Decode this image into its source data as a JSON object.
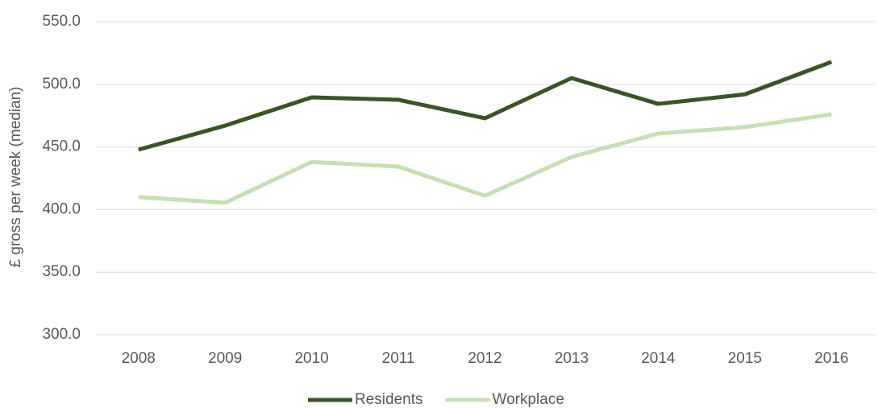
{
  "chart_data": {
    "type": "line",
    "y_label": "£ gross per week (median)",
    "categories": [
      "2008",
      "2009",
      "2010",
      "2011",
      "2012",
      "2013",
      "2014",
      "2015",
      "2016"
    ],
    "series": [
      {
        "name": "Residents",
        "color": "#375623",
        "values": [
          447.8,
          467.0,
          489.6,
          487.7,
          472.9,
          505.0,
          484.4,
          492.0,
          517.9
        ]
      },
      {
        "name": "Workplace",
        "color": "#c5e0b4",
        "values": [
          410.0,
          405.4,
          438.0,
          434.3,
          411.0,
          442.0,
          460.7,
          465.8,
          476.0
        ]
      }
    ],
    "ylim": [
      300,
      550
    ],
    "yticks": [
      {
        "value": 300,
        "label": "300.0"
      },
      {
        "value": 350,
        "label": "350.0"
      },
      {
        "value": 400,
        "label": "400.0"
      },
      {
        "value": 450,
        "label": "450.0"
      },
      {
        "value": 500,
        "label": "500.0"
      },
      {
        "value": 550,
        "label": "550.0"
      }
    ],
    "grid": true,
    "legend": "bottom"
  }
}
